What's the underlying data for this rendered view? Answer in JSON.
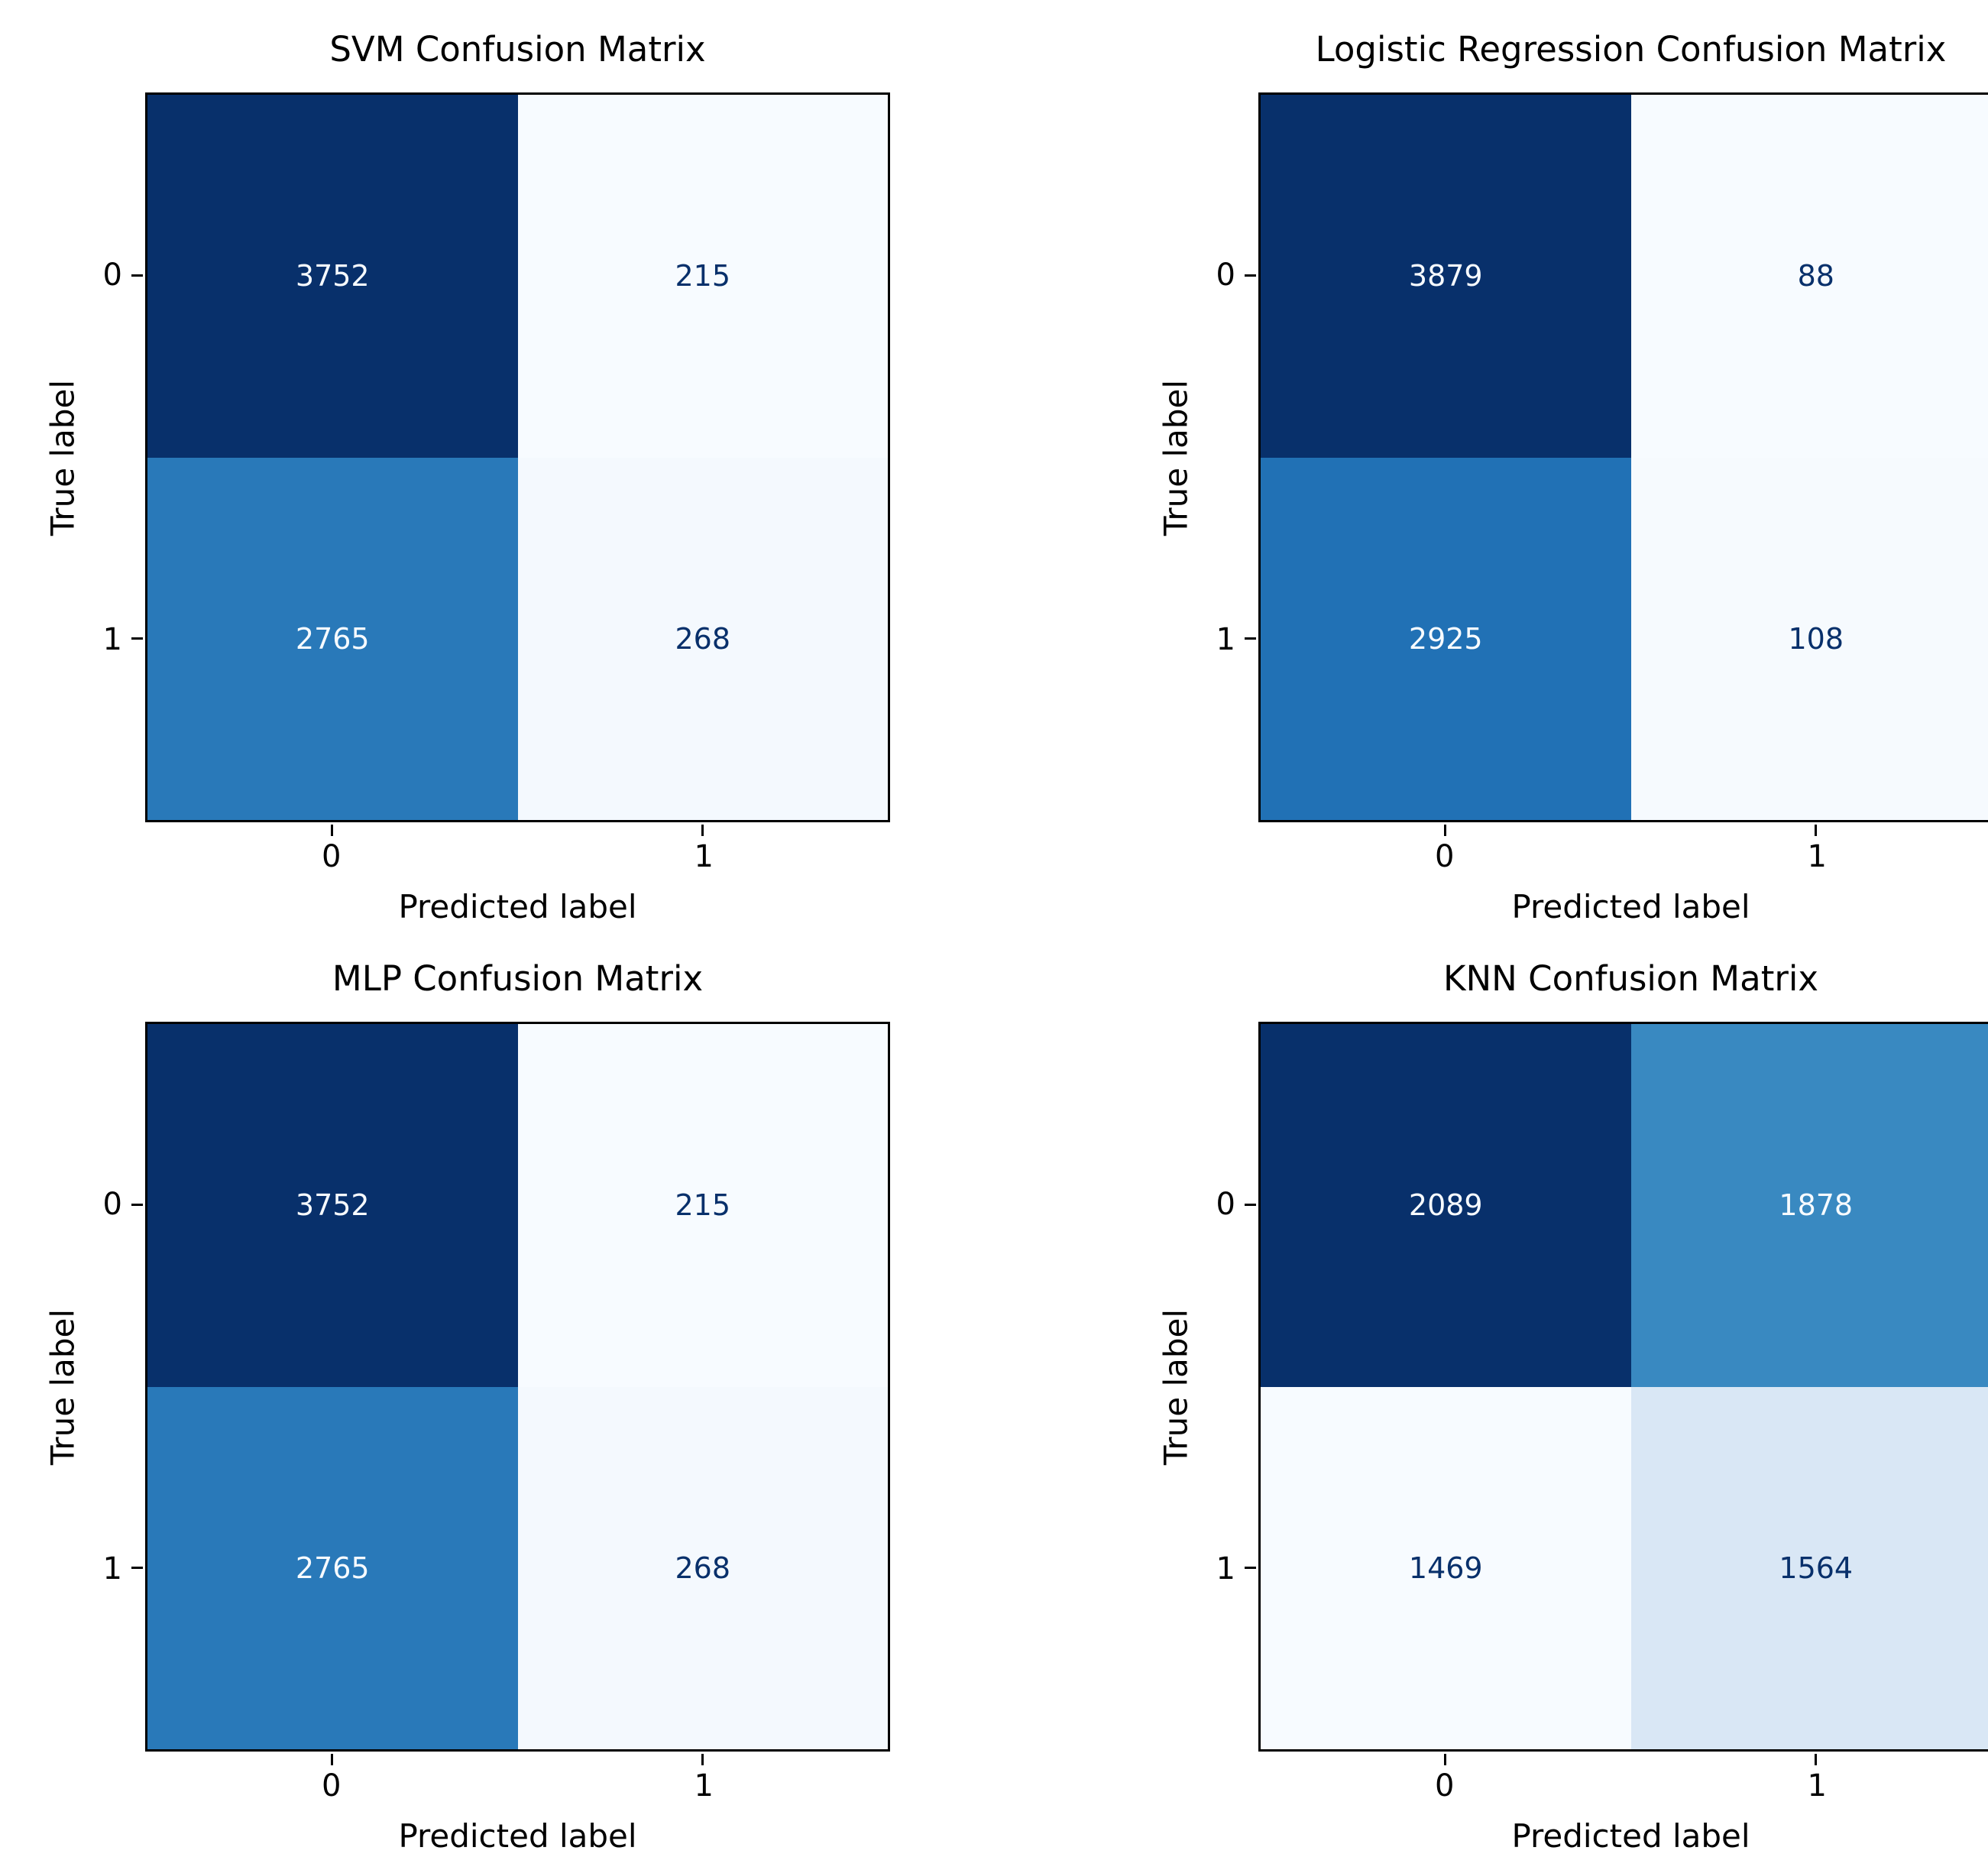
{
  "figure": {
    "background_color": "#ffffff",
    "spine_color": "#000000",
    "text_color": "#000000",
    "colormap": "Blues",
    "grid": false
  },
  "chart_data": [
    {
      "type": "heatmap",
      "title": "SVM Confusion Matrix",
      "xlabel": "Predicted label",
      "ylabel": "True label",
      "x_tick_labels": [
        "0",
        "1"
      ],
      "y_tick_labels": [
        "0",
        "1"
      ],
      "matrix": [
        [
          3752,
          215
        ],
        [
          2765,
          268
        ]
      ],
      "cell_colors": [
        [
          "#08306b",
          "#f7fbff"
        ],
        [
          "#2979b9",
          "#f4f9fe"
        ]
      ],
      "text_colors": [
        [
          "#f7fbff",
          "#08306b"
        ],
        [
          "#f7fbff",
          "#08306b"
        ]
      ]
    },
    {
      "type": "heatmap",
      "title": "Logistic Regression Confusion Matrix",
      "xlabel": "Predicted label",
      "ylabel": "True label",
      "x_tick_labels": [
        "0",
        "1"
      ],
      "y_tick_labels": [
        "0",
        "1"
      ],
      "matrix": [
        [
          3879,
          88
        ],
        [
          2925,
          108
        ]
      ],
      "cell_colors": [
        [
          "#08306b",
          "#f7fbff"
        ],
        [
          "#2171b5",
          "#f6fafe"
        ]
      ],
      "text_colors": [
        [
          "#f7fbff",
          "#08306b"
        ],
        [
          "#f7fbff",
          "#08306b"
        ]
      ]
    },
    {
      "type": "heatmap",
      "title": "MLP Confusion Matrix",
      "xlabel": "Predicted label",
      "ylabel": "True label",
      "x_tick_labels": [
        "0",
        "1"
      ],
      "y_tick_labels": [
        "0",
        "1"
      ],
      "matrix": [
        [
          3752,
          215
        ],
        [
          2765,
          268
        ]
      ],
      "cell_colors": [
        [
          "#08306b",
          "#f7fbff"
        ],
        [
          "#2979b9",
          "#f4f9fe"
        ]
      ],
      "text_colors": [
        [
          "#f7fbff",
          "#08306b"
        ],
        [
          "#f7fbff",
          "#08306b"
        ]
      ]
    },
    {
      "type": "heatmap",
      "title": "KNN Confusion Matrix",
      "xlabel": "Predicted label",
      "ylabel": "True label",
      "x_tick_labels": [
        "0",
        "1"
      ],
      "y_tick_labels": [
        "0",
        "1"
      ],
      "matrix": [
        [
          2089,
          1878
        ],
        [
          1469,
          1564
        ]
      ],
      "cell_colors": [
        [
          "#08306b",
          "#3989c1"
        ],
        [
          "#f7fbff",
          "#d9e7f5"
        ]
      ],
      "text_colors": [
        [
          "#f7fbff",
          "#f7fbff"
        ],
        [
          "#08306b",
          "#08306b"
        ]
      ]
    }
  ]
}
